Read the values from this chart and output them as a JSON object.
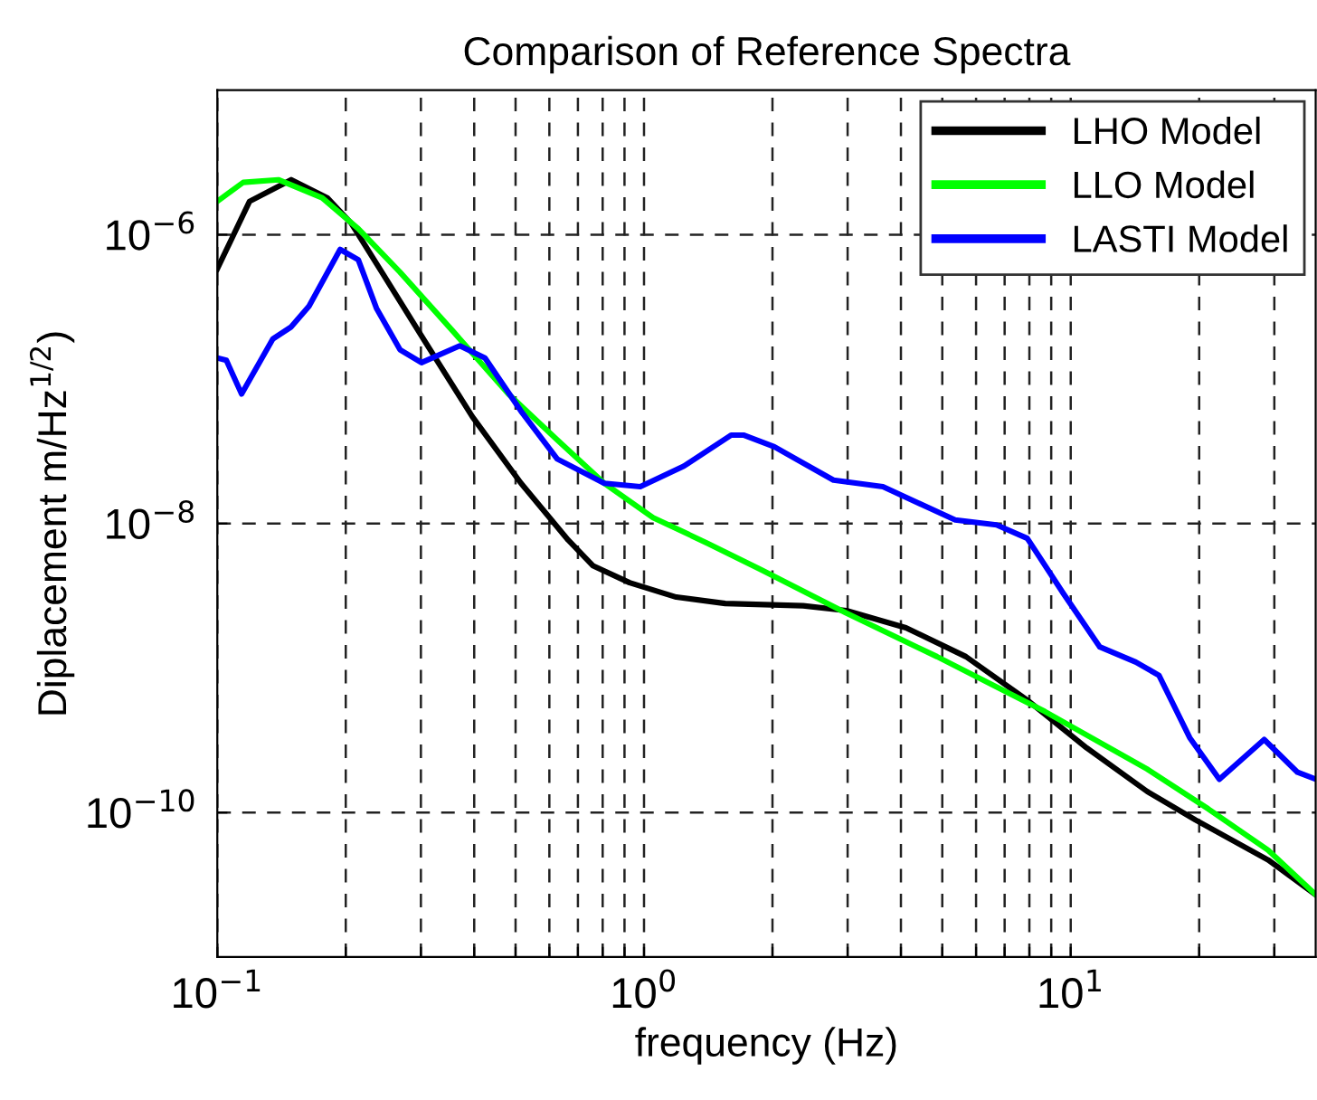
{
  "chart_data": {
    "type": "line",
    "title": "Comparison of Reference Spectra",
    "xlabel": "frequency (Hz)",
    "ylabel": "Diplacement m/Hz$^{1/2}$)",
    "log": "xy",
    "grid": true,
    "legend": "top right",
    "line_style": "solid",
    "marker": "none",
    "xlim": [
      0.1,
      37.5
    ],
    "ylim": [
      1e-11,
      1e-05
    ],
    "xticks": [
      {
        "value": 0.1,
        "label": "10$^{−1}$"
      },
      {
        "value": 0.2,
        "label": null
      },
      {
        "value": 0.3,
        "label": null
      },
      {
        "value": 0.4,
        "label": null
      },
      {
        "value": 0.5,
        "label": null
      },
      {
        "value": 0.6,
        "label": null
      },
      {
        "value": 0.7,
        "label": null
      },
      {
        "value": 0.8,
        "label": null
      },
      {
        "value": 0.9,
        "label": null
      },
      {
        "value": 1,
        "label": "10$^{0}$"
      },
      {
        "value": 2,
        "label": null
      },
      {
        "value": 3,
        "label": null
      },
      {
        "value": 4,
        "label": null
      },
      {
        "value": 5,
        "label": null
      },
      {
        "value": 6,
        "label": null
      },
      {
        "value": 7,
        "label": null
      },
      {
        "value": 8,
        "label": null
      },
      {
        "value": 9,
        "label": null
      },
      {
        "value": 10,
        "label": "10$^{1}$"
      },
      {
        "value": 20,
        "label": null
      },
      {
        "value": 30,
        "label": null
      }
    ],
    "yticks": [
      {
        "value": 1e-10,
        "label": "10$^{−10}$"
      },
      {
        "value": 1e-08,
        "label": "10$^{−8}$"
      },
      {
        "value": 1e-06,
        "label": "10$^{−6}$"
      }
    ],
    "series": [
      {
        "name": "LHO Model",
        "color": "#000000",
        "x": [
          0.1,
          0.119,
          0.149,
          0.181,
          0.206,
          0.243,
          0.304,
          0.396,
          0.515,
          0.664,
          0.76,
          0.925,
          1.19,
          1.55,
          2.36,
          2.98,
          4.11,
          5.68,
          7.91,
          10.9,
          15.1,
          19.6,
          29,
          37.5
        ],
        "values": [
          5.8e-07,
          1.7e-06,
          2.4e-06,
          1.8e-06,
          1.2e-06,
          5.5e-07,
          1.9e-07,
          5.5e-08,
          1.9e-08,
          7.7e-09,
          5.1e-09,
          3.9e-09,
          3.1e-09,
          2.8e-09,
          2.7e-09,
          2.5e-09,
          1.9e-09,
          1.2e-09,
          6e-10,
          2.8e-10,
          1.4e-10,
          8.9e-11,
          4.7e-11,
          2.7e-11
        ]
      },
      {
        "name": "LLO Model",
        "color": "#00ff00",
        "x": [
          0.1,
          0.115,
          0.139,
          0.176,
          0.214,
          0.268,
          0.359,
          0.481,
          0.626,
          0.807,
          1.05,
          1.41,
          1.88,
          2.98,
          4.86,
          8.7,
          15.1,
          21,
          29,
          37.5
        ],
        "values": [
          1.7e-06,
          2.3e-06,
          2.4e-06,
          1.8e-06,
          1.1e-06,
          5.5e-07,
          2.1e-07,
          7.9e-08,
          3.8e-08,
          1.9e-08,
          1.1e-08,
          7.3e-09,
          4.8e-09,
          2.4e-09,
          1.2e-09,
          5e-10,
          2e-10,
          1.06e-10,
          5.5e-11,
          2.7e-11
        ]
      },
      {
        "name": "LASTI Model",
        "color": "#0000ff",
        "x": [
          0.1,
          0.105,
          0.114,
          0.135,
          0.149,
          0.164,
          0.194,
          0.214,
          0.236,
          0.268,
          0.301,
          0.37,
          0.424,
          0.515,
          0.626,
          0.807,
          0.98,
          1.24,
          1.6,
          1.71,
          2.02,
          2.78,
          3.63,
          5.36,
          6.7,
          7.91,
          9.6,
          11.7,
          14.2,
          16.1,
          19,
          22.3,
          28.4,
          34,
          37.5
        ],
        "values": [
          1.4e-07,
          1.35e-07,
          7.9e-08,
          1.9e-07,
          2.3e-07,
          3.2e-07,
          7.9e-07,
          6.7e-07,
          3.1e-07,
          1.6e-07,
          1.3e-07,
          1.7e-07,
          1.4e-07,
          6e-08,
          2.8e-08,
          1.9e-08,
          1.8e-08,
          2.5e-08,
          4.1e-08,
          4.1e-08,
          3.4e-08,
          2e-08,
          1.8e-08,
          1.06e-08,
          9.8e-09,
          7.9e-09,
          3.3e-09,
          1.4e-09,
          1.1e-09,
          8.9e-10,
          3.3e-10,
          1.7e-10,
          3.2e-10,
          1.9e-10,
          1.7e-10
        ]
      }
    ]
  }
}
